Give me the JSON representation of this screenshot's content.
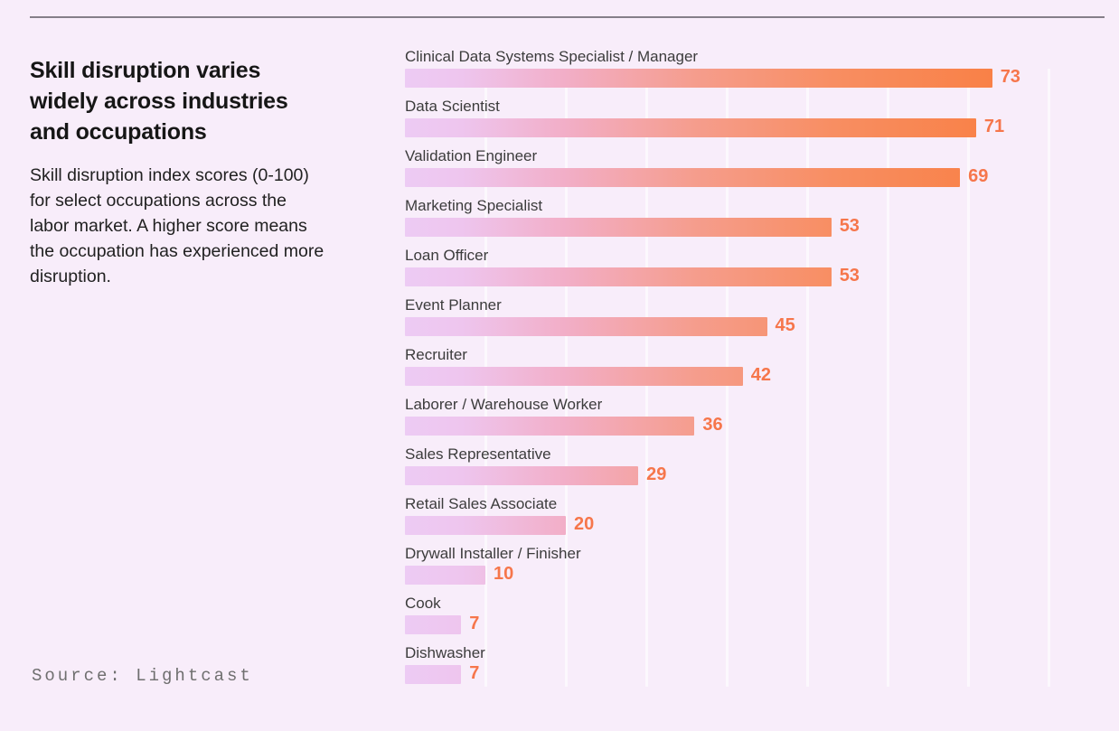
{
  "chart_data": {
    "type": "bar",
    "orientation": "horizontal",
    "title": "Skill disruption varies widely across industries and occupations",
    "subtitle": "Skill disruption index scores (0-100) for select occupations across the labor market. A higher score means the occupation has experienced more disruption.",
    "source_label": "Source: Lightcast",
    "categories": [
      "Clinical Data Systems Specialist / Manager",
      "Data Scientist",
      "Validation Engineer",
      "Marketing Specialist",
      "Loan Officer",
      "Event Planner",
      "Recruiter",
      "Laborer / Warehouse Worker",
      "Sales Representative",
      "Retail Sales Associate",
      "Drywall Installer / Finisher",
      "Cook",
      "Dishwasher"
    ],
    "values": [
      73,
      71,
      69,
      53,
      53,
      45,
      42,
      36,
      29,
      20,
      10,
      7,
      7
    ],
    "value_labels": [
      "73",
      "71",
      "69",
      "53",
      "53",
      "45",
      "42",
      "36",
      "29",
      "20",
      "10",
      "7",
      "7"
    ],
    "xlim": [
      0,
      100
    ],
    "gridline_interval": 10,
    "gridlines_shown": [
      10,
      20,
      30,
      40,
      50,
      60,
      70,
      80
    ],
    "legend": "none",
    "colors": {
      "background": "#f8edfa",
      "gridline": "rgba(255,255,255,0.62)",
      "top_rule": "#857f89",
      "title_text": "#161616",
      "subtitle_text": "#212121",
      "category_label_text": "#3c3c3c",
      "value_label_text": "#f6764b",
      "source_text": "#6f6f6f",
      "bar_gradient_stops": [
        {
          "pos": 0,
          "color": "#edcbf4"
        },
        {
          "pos": 8,
          "color": "#eec5ee"
        },
        {
          "pos": 22.5,
          "color": "#f2aec7"
        },
        {
          "pos": 40.5,
          "color": "#f59d8d"
        },
        {
          "pos": 60,
          "color": "#f88e62"
        },
        {
          "pos": 82,
          "color": "#f98147"
        },
        {
          "pos": 100,
          "color": "#fb7a39"
        }
      ]
    }
  }
}
